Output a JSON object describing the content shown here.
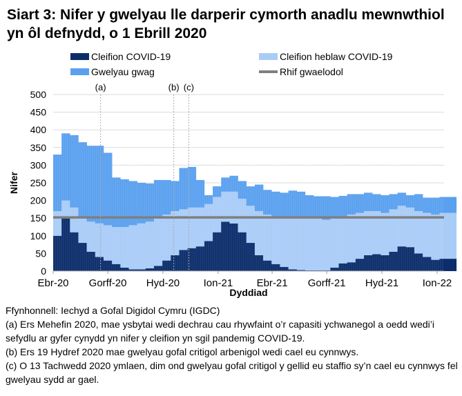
{
  "title": "Siart 3: Nifer y gwelyau lle darperir cymorth anadlu mewnwthiol yn ôl defnydd, o 1 Ebrill 2020",
  "chart_data": {
    "type": "bar",
    "stacked": true,
    "xlabel": "Dyddiad",
    "ylabel": "Nifer",
    "ylim": [
      0,
      500
    ],
    "yticks": [
      "0",
      "50",
      "100",
      "150",
      "200",
      "250",
      "300",
      "350",
      "400",
      "450",
      "500"
    ],
    "xticks": [
      {
        "label": "Ebr-20",
        "date": "2020-04-01"
      },
      {
        "label": "Gorff-20",
        "date": "2020-07-01"
      },
      {
        "label": "Hyd-20",
        "date": "2020-10-01"
      },
      {
        "label": "Ion-21",
        "date": "2021-01-01"
      },
      {
        "label": "Ebr-21",
        "date": "2021-04-01"
      },
      {
        "label": "Gorff-21",
        "date": "2021-07-01"
      },
      {
        "label": "Hyd-21",
        "date": "2021-10-01"
      },
      {
        "label": "Ion-22",
        "date": "2022-01-01"
      }
    ],
    "grid": true,
    "legend_position": "top",
    "x": [
      "2020-04-01",
      "2020-04-15",
      "2020-04-29",
      "2020-05-13",
      "2020-05-27",
      "2020-06-10",
      "2020-06-24",
      "2020-07-08",
      "2020-07-22",
      "2020-08-05",
      "2020-08-19",
      "2020-09-02",
      "2020-09-16",
      "2020-09-30",
      "2020-10-14",
      "2020-10-28",
      "2020-11-11",
      "2020-11-25",
      "2020-12-09",
      "2020-12-23",
      "2021-01-06",
      "2021-01-20",
      "2021-02-03",
      "2021-02-17",
      "2021-03-03",
      "2021-03-17",
      "2021-03-31",
      "2021-04-14",
      "2021-04-28",
      "2021-05-12",
      "2021-05-26",
      "2021-06-09",
      "2021-06-23",
      "2021-07-07",
      "2021-07-21",
      "2021-08-04",
      "2021-08-18",
      "2021-09-01",
      "2021-09-15",
      "2021-09-29",
      "2021-10-13",
      "2021-10-27",
      "2021-11-10",
      "2021-11-24",
      "2021-12-08",
      "2021-12-22",
      "2022-01-05",
      "2022-01-19",
      "2022-02-02"
    ],
    "series": [
      {
        "name": "Cleifion COVID-19",
        "color": "#0b2d6b",
        "values": [
          100,
          150,
          110,
          80,
          55,
          40,
          30,
          20,
          10,
          5,
          5,
          8,
          15,
          30,
          45,
          60,
          65,
          70,
          85,
          110,
          140,
          135,
          110,
          80,
          45,
          30,
          20,
          12,
          5,
          3,
          2,
          2,
          2,
          10,
          22,
          25,
          35,
          45,
          48,
          45,
          55,
          70,
          68,
          50,
          40,
          32,
          35,
          35,
          25
        ]
      },
      {
        "name": "Cleifion heblaw COVID-19",
        "color": "#a9ccf7",
        "values": [
          70,
          50,
          70,
          70,
          85,
          95,
          100,
          105,
          115,
          125,
          130,
          132,
          135,
          130,
          125,
          115,
          115,
          110,
          105,
          100,
          85,
          90,
          95,
          105,
          125,
          130,
          135,
          138,
          145,
          147,
          148,
          148,
          143,
          140,
          133,
          135,
          130,
          125,
          122,
          120,
          120,
          115,
          112,
          120,
          125,
          128,
          130,
          130,
          140
        ]
      },
      {
        "name": "Gwelyau gwag",
        "color": "#5aa0ef",
        "values": [
          160,
          190,
          205,
          215,
          215,
          220,
          205,
          140,
          135,
          125,
          115,
          108,
          108,
          98,
          85,
          117,
          115,
          78,
          25,
          30,
          40,
          45,
          50,
          55,
          75,
          70,
          70,
          72,
          78,
          75,
          65,
          62,
          67,
          60,
          58,
          58,
          53,
          52,
          48,
          50,
          43,
          37,
          35,
          48,
          43,
          48,
          45,
          45,
          47
        ]
      }
    ],
    "baseline": {
      "name": "Rhif gwaelodol",
      "value": 152,
      "color": "#7f7f7f"
    },
    "annotations": [
      {
        "label": "(a)",
        "date": "2020-06-19"
      },
      {
        "label": "(b)",
        "date": "2020-10-19"
      },
      {
        "label": "(c)",
        "date": "2020-11-13"
      }
    ]
  },
  "notes": [
    "Ffynhonnell: Iechyd a Gofal Digidol Cymru (IGDC)",
    "(a) Ers Mehefin 2020, mae ysbytai wedi dechrau cau rhywfaint o’r capasiti ychwanegol a oedd wedi’i sefydlu ar gyfer cynydd yn nifer y cleifion yn sgil pandemig COVID-19.",
    "(b) Ers 19 Hydref 2020 mae gwelyau gofal critigol arbenigol wedi cael eu cynnwys.",
    "(c) O 13 Tachwedd 2020 ymlaen, dim ond gwelyau gofal critigol y gellid eu staffio sy’n cael eu cynnwys fel gwelyau sydd ar gael."
  ]
}
